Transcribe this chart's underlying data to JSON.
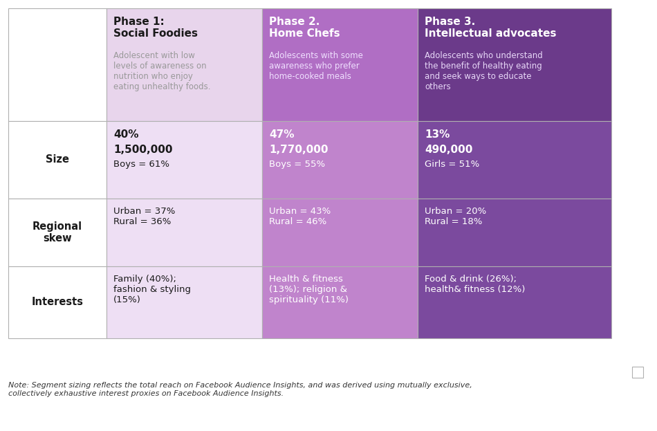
{
  "col_colors": {
    "col0_header": "#ffffff",
    "col1_header": "#e8d5ec",
    "col2_header": "#b06ec4",
    "col3_header": "#6b3a8a",
    "col0_body": "#ffffff",
    "col1_body": "#eedff4",
    "col2_body": "#c084cc",
    "col3_body": "#7b4a9e"
  },
  "border_color": "#b0b0b0",
  "text_dark": "#1a1a1a",
  "text_white": "#ffffff",
  "text_gray": "#999999",
  "header_titles": [
    "",
    "Phase 1:\nSocial Foodies",
    "Phase 2.\nHome Chefs",
    "Phase 3.\nIntellectual advocates"
  ],
  "header_subs": [
    "",
    "Adolescent with low\nlevels of awareness on\nnutrition who enjoy\neating unhealthy foods.",
    "Adolescents with some\nawareness who prefer\nhome-cooked meals",
    "Adolescents who understand\nthe benefit of healthy eating\nand seek ways to educate\nothers"
  ],
  "row_labels": [
    "Size",
    "Regional\nskew",
    "Interests"
  ],
  "size_data": [
    [
      "40%",
      "1,500,000",
      "Boys = 61%"
    ],
    [
      "47%",
      "1,770,000",
      "Boys = 55%"
    ],
    [
      "13%",
      "490,000",
      "Girls = 51%"
    ]
  ],
  "regional_data": [
    "Urban = 37%\nRural = 36%",
    "Urban = 43%\nRural = 46%",
    "Urban = 20%\nRural = 18%"
  ],
  "interests_data": [
    "Family (40%);\nfashion & styling\n(15%)",
    "Health & fitness\n(13%); religion &\nspirituality (11%)",
    "Food & drink (26%);\nhealth& fitness (12%)"
  ],
  "note": "Note: Segment sizing reflects the total reach on Facebook Audience Insights, and was derived using mutually exclusive,\ncollectively exhaustive interest proxies on Facebook Audience Insights."
}
